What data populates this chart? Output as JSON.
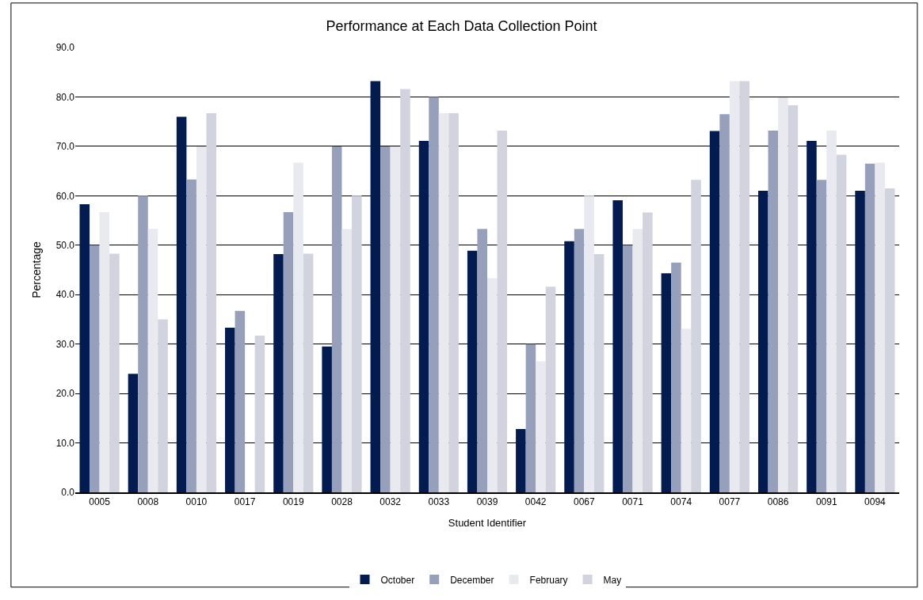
{
  "chart_data": {
    "type": "bar",
    "title": "Performance at Each Data Collection Point",
    "xlabel": "Student Identifier",
    "ylabel": "Percentage",
    "categories": [
      "0005",
      "0008",
      "0010",
      "0017",
      "0019",
      "0028",
      "0032",
      "0033",
      "0039",
      "0042",
      "0067",
      "0071",
      "0074",
      "0077",
      "0086",
      "0091",
      "0094"
    ],
    "series": [
      {
        "name": "October",
        "color": "#021c52",
        "values": [
          58.3,
          24.0,
          76.0,
          33.3,
          48.2,
          29.5,
          83.2,
          71.1,
          48.9,
          12.8,
          50.8,
          59.1,
          44.3,
          73.1,
          61.0,
          71.1,
          61.0
        ]
      },
      {
        "name": "December",
        "color": "#96a0ba",
        "values": [
          50.0,
          60.0,
          63.3,
          36.7,
          56.7,
          70.0,
          70.0,
          80.0,
          53.3,
          30.0,
          53.3,
          50.0,
          46.5,
          76.5,
          73.2,
          63.2,
          66.5
        ]
      },
      {
        "name": "February",
        "color": "#e8eaef",
        "values": [
          56.7,
          53.3,
          70.0,
          null,
          66.7,
          53.3,
          70.0,
          76.7,
          43.3,
          26.5,
          60.0,
          53.3,
          33.1,
          83.2,
          79.9,
          73.2,
          66.7
        ]
      },
      {
        "name": "May",
        "color": "#d1d3de",
        "values": [
          48.3,
          35.0,
          76.7,
          31.7,
          48.3,
          60.0,
          81.6,
          76.7,
          73.2,
          41.6,
          48.2,
          56.6,
          63.2,
          83.2,
          78.3,
          68.3,
          61.5
        ]
      }
    ],
    "ylim": [
      0,
      90
    ],
    "yticks": [
      {
        "value": 0,
        "label": "0.0"
      },
      {
        "value": 10,
        "label": "10.0"
      },
      {
        "value": 20,
        "label": "20.0"
      },
      {
        "value": 30,
        "label": "30.0"
      },
      {
        "value": 40,
        "label": "40.0"
      },
      {
        "value": 50,
        "label": "50.0"
      },
      {
        "value": 60,
        "label": "60.0"
      },
      {
        "value": 70,
        "label": "70.0"
      },
      {
        "value": 80,
        "label": "80.0"
      },
      {
        "value": 90,
        "label": "90.0"
      }
    ],
    "grid": "y",
    "legend": "bottom"
  }
}
